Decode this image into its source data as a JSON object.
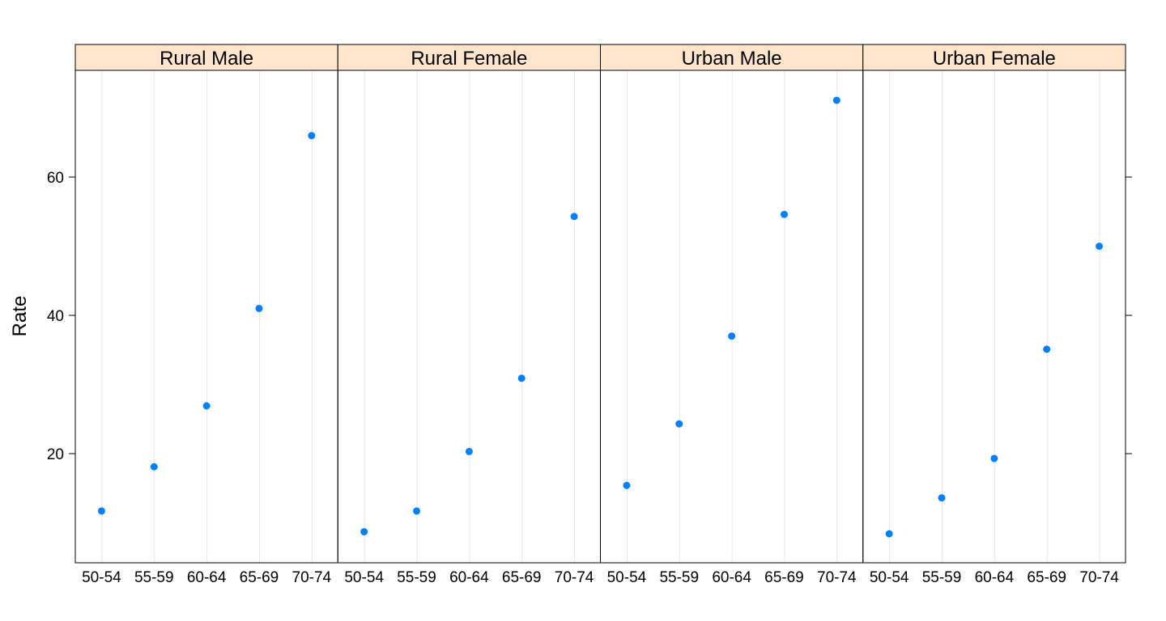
{
  "chart_data": {
    "type": "scatter",
    "title": "",
    "xlabel": "",
    "ylabel": "Rate",
    "ylim": [
      4.2,
      75.5
    ],
    "y_ticks": [
      20,
      40,
      60
    ],
    "grid": "vertical reference lines at each category",
    "legend": null,
    "categories": [
      "50-54",
      "55-59",
      "60-64",
      "65-69",
      "70-74"
    ],
    "panels": [
      {
        "name": "Rural Male",
        "values": [
          11.7,
          18.1,
          26.9,
          41.0,
          66.0
        ]
      },
      {
        "name": "Rural Female",
        "values": [
          8.7,
          11.7,
          20.3,
          30.9,
          54.3
        ]
      },
      {
        "name": "Urban Male",
        "values": [
          15.4,
          24.3,
          37.0,
          54.6,
          71.1
        ]
      },
      {
        "name": "Urban Female",
        "values": [
          8.4,
          13.6,
          19.3,
          35.1,
          50.0
        ]
      }
    ],
    "colors": {
      "point": "#0080ff",
      "strip": "#ffe5cc",
      "grid": "#e6e6e6",
      "frame": "#000000"
    }
  }
}
